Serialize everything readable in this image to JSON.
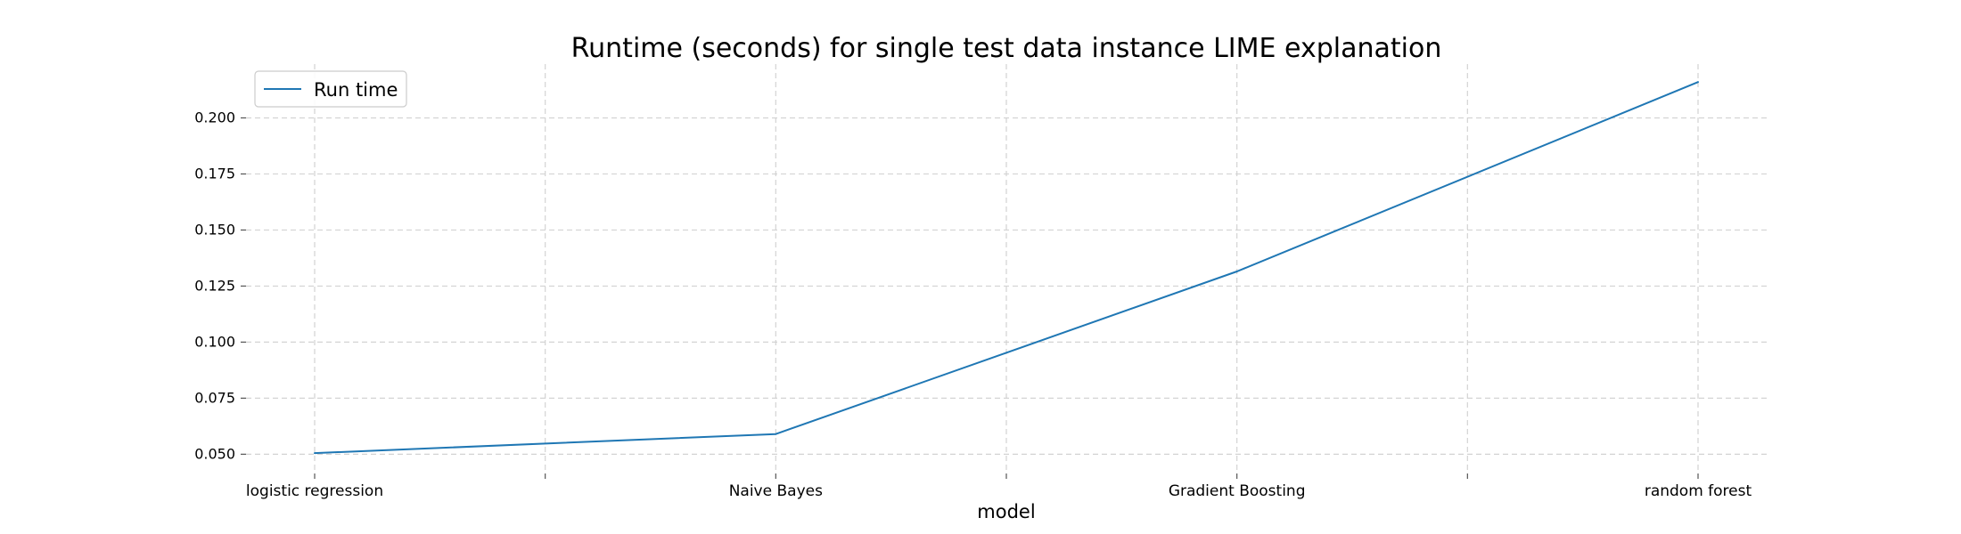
{
  "chart_data": {
    "type": "line",
    "title": "Runtime (seconds) for single test data instance LIME explanation",
    "xlabel": "model",
    "ylabel": "",
    "categories": [
      "logistic regression",
      "Naive Bayes",
      "Gradient Boosting",
      "random forest"
    ],
    "x_ticks": [
      "logistic regression",
      "",
      "Naive Bayes",
      "",
      "Gradient Boosting",
      "",
      "random forest"
    ],
    "y_ticks": [
      "0.050",
      "0.075",
      "0.100",
      "0.125",
      "0.150",
      "0.175",
      "0.200"
    ],
    "ylim": [
      0.043,
      0.224
    ],
    "grid": true,
    "legend_position": "top-left",
    "series": [
      {
        "name": "Run time",
        "color": "#1f77b4",
        "values": [
          0.0505,
          0.059,
          0.1315,
          0.216
        ]
      }
    ]
  }
}
